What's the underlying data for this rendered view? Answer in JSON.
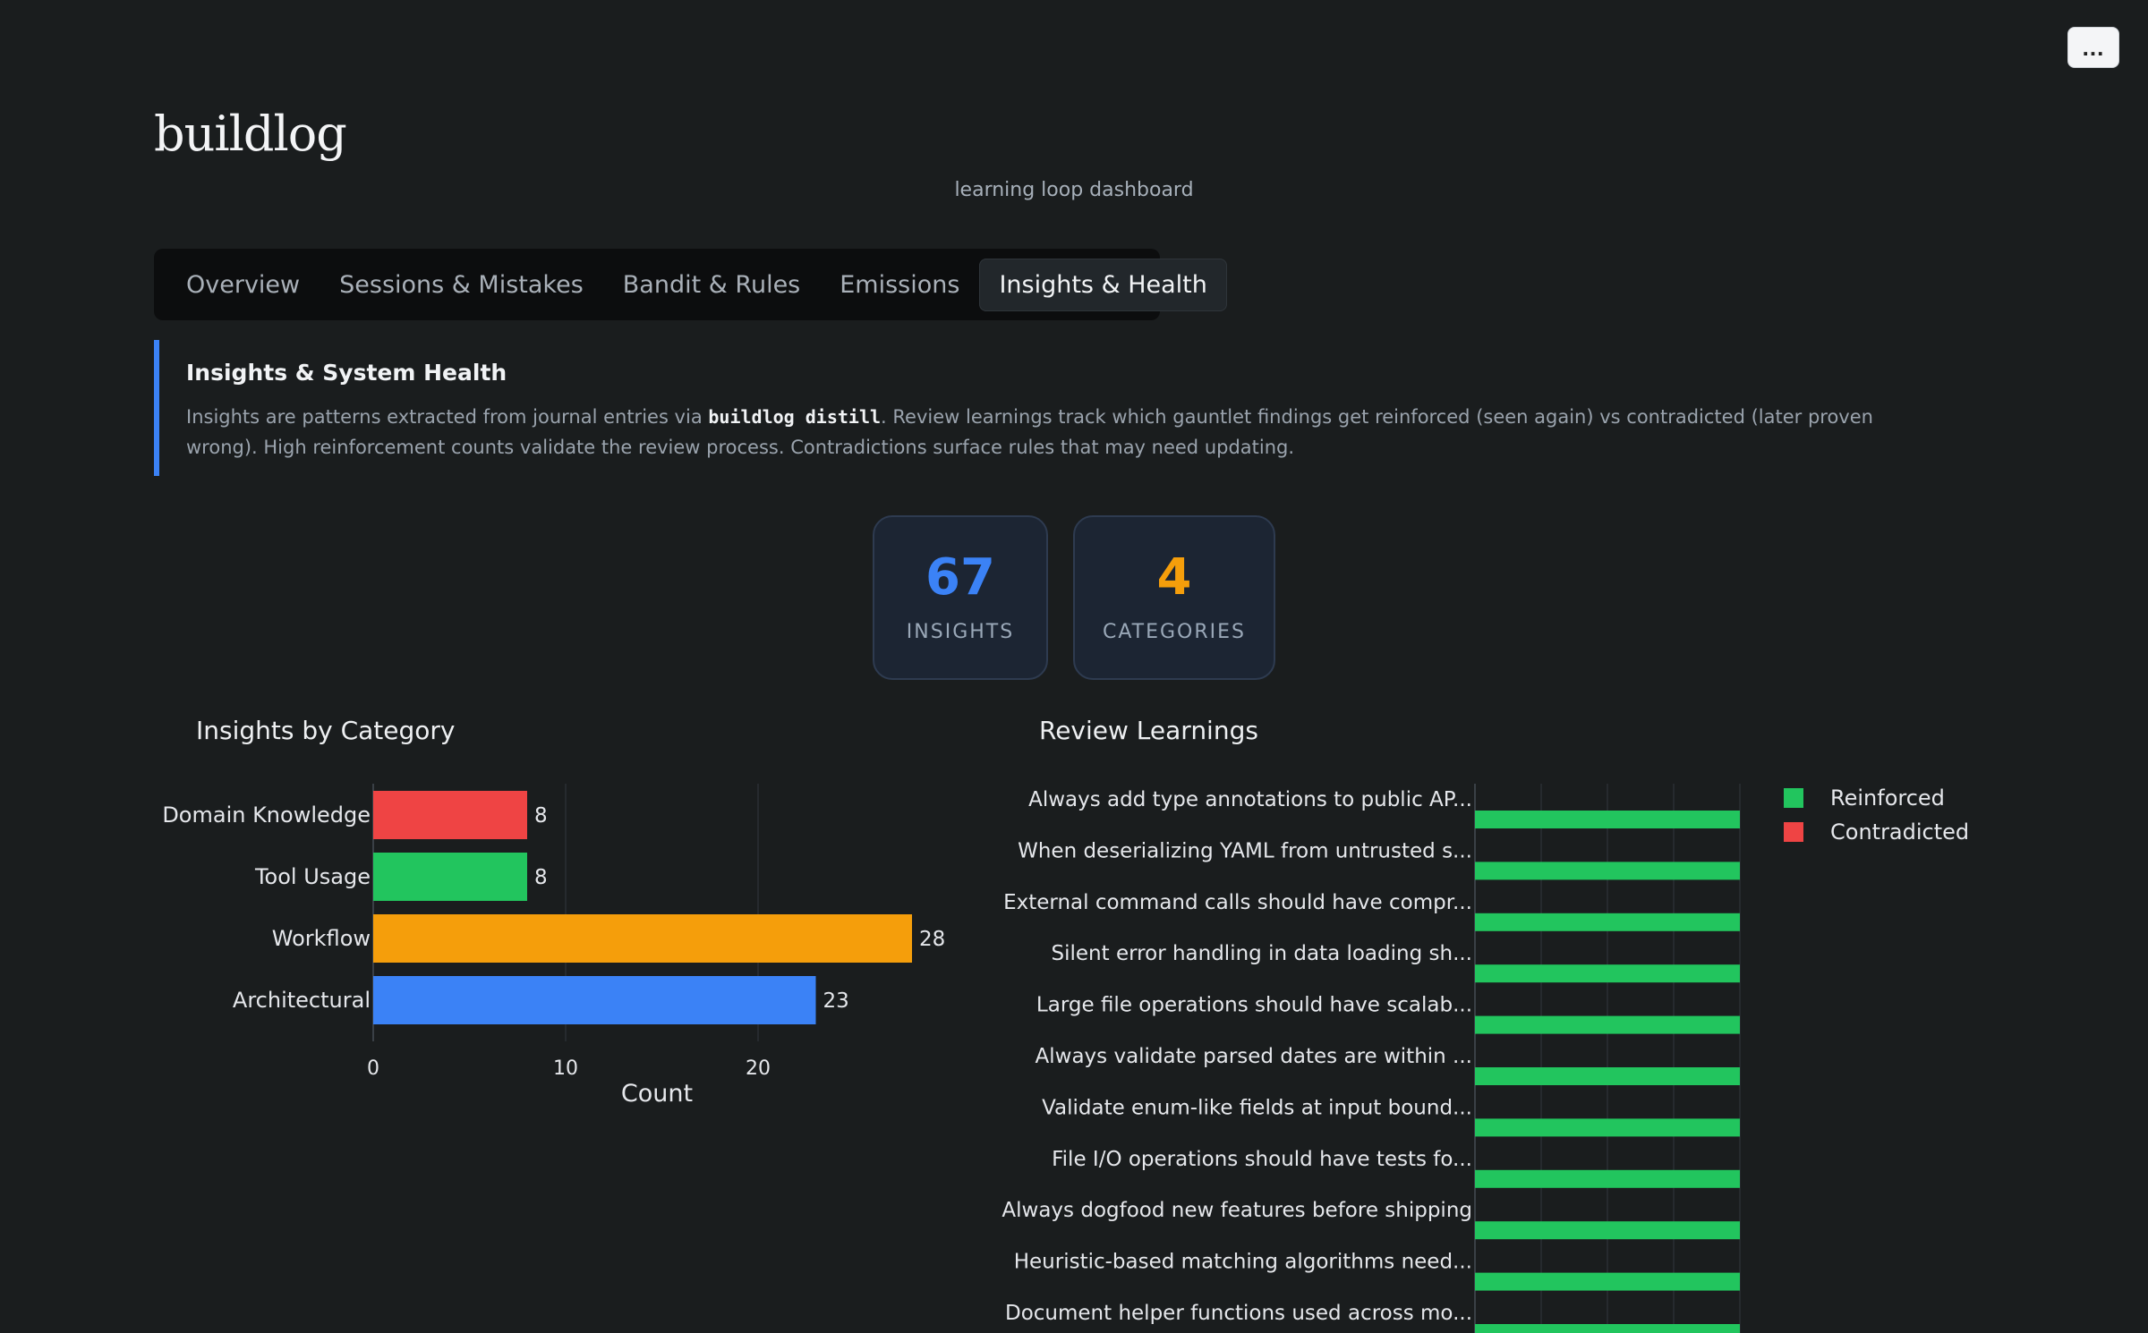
{
  "app": {
    "brand": "buildlog",
    "subtitle": "learning loop dashboard",
    "menu_label": "..."
  },
  "tabs": [
    {
      "label": "Overview",
      "active": false
    },
    {
      "label": "Sessions & Mistakes",
      "active": false
    },
    {
      "label": "Bandit & Rules",
      "active": false
    },
    {
      "label": "Emissions",
      "active": false
    },
    {
      "label": "Insights & Health",
      "active": true
    }
  ],
  "callout": {
    "title": "Insights & System Health",
    "body_before": "Insights are patterns extracted from journal entries via ",
    "body_code": "buildlog distill",
    "body_after": ". Review learnings track which gauntlet findings get reinforced (seen again) vs contradicted (later proven wrong). High reinforcement counts validate the review process. Contradictions surface rules that may need updating.",
    "accent_color": "#3b82f6"
  },
  "stats": [
    {
      "value": "67",
      "label": "INSIGHTS",
      "color": "#3b82f6"
    },
    {
      "value": "4",
      "label": "CATEGORIES",
      "color": "#f59e0b"
    }
  ],
  "chart_data": [
    {
      "type": "bar",
      "orientation": "horizontal",
      "title": "Insights by Category",
      "categories": [
        "Domain Knowledge",
        "Tool Usage",
        "Workflow",
        "Architectural"
      ],
      "values": [
        8,
        8,
        28,
        23
      ],
      "data_labels": [
        "8",
        "8",
        "28",
        "23"
      ],
      "colors": [
        "#ef4444",
        "#22c55e",
        "#f59e0b",
        "#3b82f6"
      ],
      "xlabel": "Count",
      "ylabel": "",
      "xticks": [
        0,
        10,
        20
      ],
      "xlim": [
        0,
        29.5
      ],
      "grid": true,
      "legend": "none"
    },
    {
      "type": "bar",
      "orientation": "horizontal",
      "stacked": true,
      "title": "Review Learnings",
      "categories": [
        "Always add type annotations to public AP...",
        "When deserializing YAML from untrusted s...",
        "External command calls should have compr...",
        "Silent error handling in data loading sh...",
        "Large file operations should have scalab...",
        "Always validate parsed dates are within ...",
        "Validate enum-like fields at input bound...",
        "File I/O operations should have tests fo...",
        "Always dogfood new features before shipping",
        "Heuristic-based matching algorithms need...",
        "Document helper functions used across mo..."
      ],
      "series": [
        {
          "name": "Reinforced",
          "color": "#22c55e",
          "values": [
            1,
            1,
            1,
            1,
            1,
            1,
            1,
            1,
            1,
            1,
            1
          ]
        },
        {
          "name": "Contradicted",
          "color": "#ef4444",
          "values": [
            0,
            0,
            0,
            0,
            0,
            0,
            0,
            0,
            0,
            0,
            0
          ]
        }
      ],
      "xlim": [
        0,
        1
      ],
      "grid": true,
      "legend": "top-right"
    }
  ]
}
